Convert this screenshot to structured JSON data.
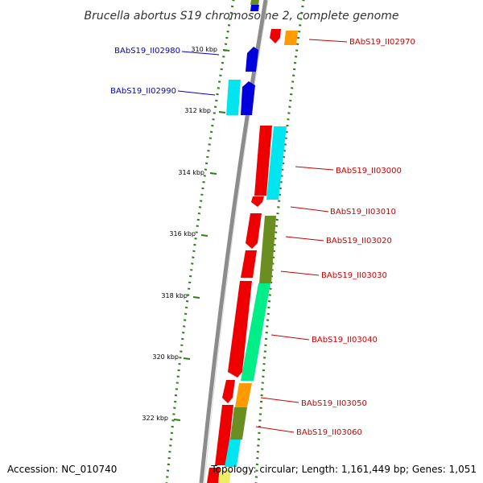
{
  "title": "Brucella abortus S19 chromosome 2, complete genome",
  "footer": {
    "accession": "Accession: NC_010740",
    "topology": "Topology: circular; Length: 1,161,449 bp; Genes: 1,051"
  },
  "colors": {
    "backbone": "#8c8c8c",
    "tick": "#2e7d16",
    "reverse_label": "#0000cc",
    "forward_label": "#cc0000",
    "red": "#ee0000",
    "blue": "#0000dd",
    "cyan": "#00e5ee",
    "orange": "#ff9a00",
    "olive": "#6b8e23",
    "springgreen": "#00ee88",
    "yellow": "#eeee66"
  },
  "scale_ticks": [
    "310 kbp",
    "312 kbp",
    "314 kbp",
    "316 kbp",
    "318 kbp",
    "320 kbp",
    "322 kbp"
  ],
  "gene_labels": {
    "reverse": [
      "BAbS19_II02980",
      "BAbS19_II02990"
    ],
    "forward": [
      "BAbS19_II02970",
      "BAbS19_II03000",
      "BAbS19_II03010",
      "BAbS19_II03020",
      "BAbS19_II03030",
      "BAbS19_II03040",
      "BAbS19_II03050",
      "BAbS19_II03060"
    ]
  }
}
